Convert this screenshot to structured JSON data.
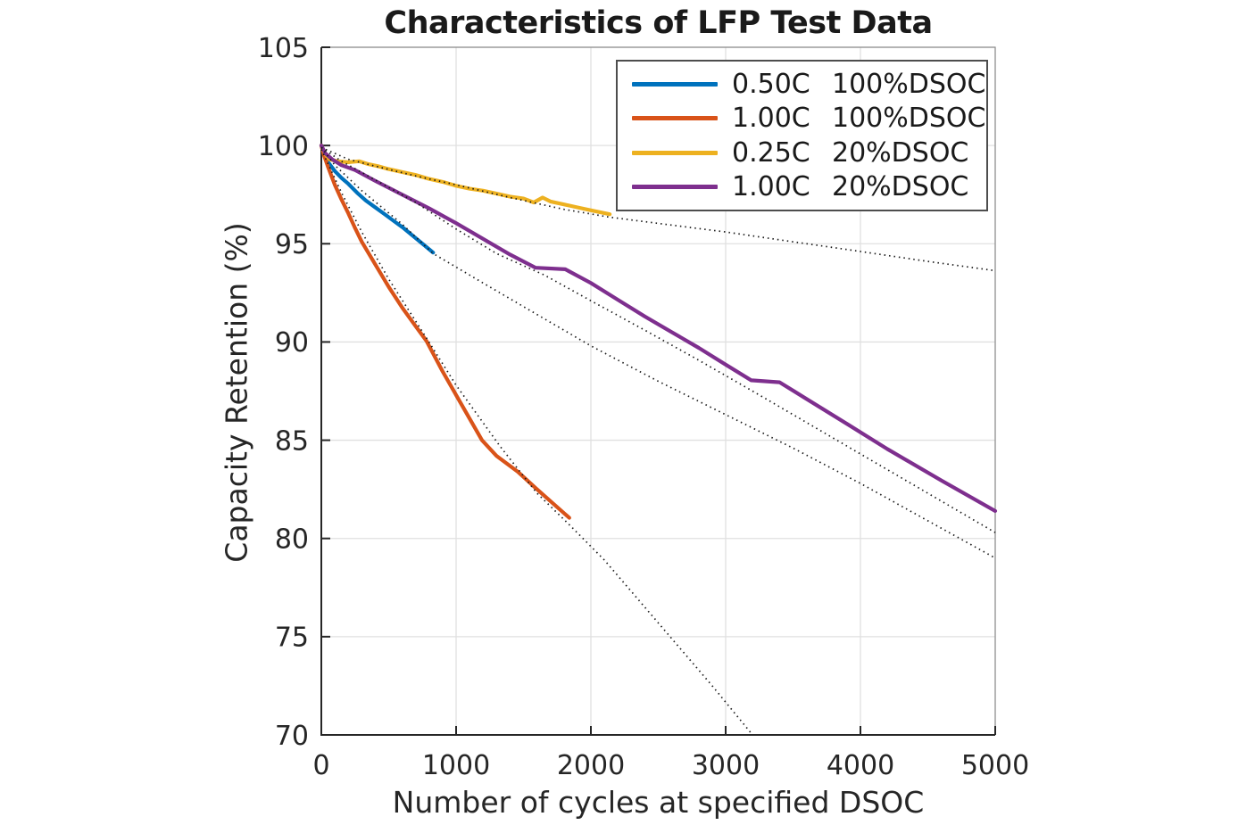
{
  "chart_data": {
    "type": "line",
    "title": "Characteristics of LFP Test Data",
    "xlabel": "Number of cycles at specified DSOC",
    "ylabel": "Capacity Retention (%)",
    "xlim": [
      0,
      5000
    ],
    "ylim": [
      70,
      105
    ],
    "xticks": [
      0,
      1000,
      2000,
      3000,
      4000,
      5000
    ],
    "yticks": [
      70,
      75,
      80,
      85,
      90,
      95,
      100,
      105
    ],
    "grid": true,
    "legend_position": "top-right",
    "axis_colors": {
      "main_axis": "#262626",
      "box_top_right": "#8c8c8c",
      "grid": "#e0e0e0"
    },
    "series": [
      {
        "name": "0.50C 100%DSOC",
        "color": "#0072BD",
        "style": "solid",
        "points": [
          [
            0,
            100
          ],
          [
            20,
            99.6
          ],
          [
            50,
            99.15
          ],
          [
            100,
            98.7
          ],
          [
            150,
            98.35
          ],
          [
            200,
            98.05
          ],
          [
            265,
            97.6
          ],
          [
            330,
            97.2
          ],
          [
            400,
            96.85
          ],
          [
            470,
            96.5
          ],
          [
            540,
            96.15
          ],
          [
            610,
            95.8
          ],
          [
            680,
            95.4
          ],
          [
            750,
            95.0
          ],
          [
            830,
            94.55
          ]
        ]
      },
      {
        "name": "1.00C 100%DSOC",
        "color": "#D95319",
        "style": "solid",
        "points": [
          [
            0,
            100
          ],
          [
            20,
            99.5
          ],
          [
            50,
            98.9
          ],
          [
            100,
            98.0
          ],
          [
            150,
            97.25
          ],
          [
            200,
            96.55
          ],
          [
            250,
            95.8
          ],
          [
            300,
            95.1
          ],
          [
            400,
            93.95
          ],
          [
            500,
            92.8
          ],
          [
            600,
            91.75
          ],
          [
            700,
            90.8
          ],
          [
            780,
            90.05
          ],
          [
            900,
            88.5
          ],
          [
            1000,
            87.3
          ],
          [
            1100,
            86.1
          ],
          [
            1192,
            85.0
          ],
          [
            1300,
            84.2
          ],
          [
            1457,
            83.4
          ],
          [
            1600,
            82.5
          ],
          [
            1700,
            81.9
          ],
          [
            1840,
            81.05
          ]
        ]
      },
      {
        "name": "0.25C 20%DSOC",
        "color": "#EDB120",
        "style": "solid",
        "points": [
          [
            0,
            100
          ],
          [
            30,
            99.55
          ],
          [
            60,
            99.3
          ],
          [
            120,
            99.2
          ],
          [
            200,
            99.15
          ],
          [
            280,
            99.2
          ],
          [
            350,
            99.05
          ],
          [
            420,
            98.95
          ],
          [
            500,
            98.8
          ],
          [
            600,
            98.65
          ],
          [
            700,
            98.5
          ],
          [
            800,
            98.3
          ],
          [
            900,
            98.15
          ],
          [
            1000,
            97.95
          ],
          [
            1100,
            97.8
          ],
          [
            1200,
            97.7
          ],
          [
            1300,
            97.55
          ],
          [
            1400,
            97.4
          ],
          [
            1500,
            97.3
          ],
          [
            1576,
            97.1
          ],
          [
            1642,
            97.35
          ],
          [
            1700,
            97.15
          ],
          [
            1800,
            97.0
          ],
          [
            1900,
            96.85
          ],
          [
            2000,
            96.7
          ],
          [
            2140,
            96.5
          ]
        ]
      },
      {
        "name": "1.00C 20%DSOC",
        "color": "#7E2F8E",
        "style": "solid",
        "points": [
          [
            0,
            100
          ],
          [
            30,
            99.6
          ],
          [
            80,
            99.3
          ],
          [
            150,
            99.0
          ],
          [
            250,
            98.75
          ],
          [
            400,
            98.2
          ],
          [
            600,
            97.5
          ],
          [
            800,
            96.8
          ],
          [
            1000,
            96.05
          ],
          [
            1200,
            95.25
          ],
          [
            1400,
            94.45
          ],
          [
            1590,
            93.78
          ],
          [
            1810,
            93.7
          ],
          [
            2000,
            93.0
          ],
          [
            2200,
            92.15
          ],
          [
            2400,
            91.3
          ],
          [
            2600,
            90.5
          ],
          [
            2800,
            89.7
          ],
          [
            3000,
            88.85
          ],
          [
            3190,
            88.05
          ],
          [
            3400,
            87.95
          ],
          [
            3600,
            87.1
          ],
          [
            3907,
            85.8
          ],
          [
            4200,
            84.55
          ],
          [
            4600,
            82.95
          ],
          [
            5000,
            81.4
          ]
        ]
      }
    ],
    "fit_lines": [
      {
        "for": "0.50C 100%DSOC",
        "color": "#1a1a1a",
        "style": "dotted",
        "points": [
          [
            0,
            99.9
          ],
          [
            100,
            99.0
          ],
          [
            300,
            97.7
          ],
          [
            600,
            96.0
          ],
          [
            830,
            94.5
          ],
          [
            1200,
            93.0
          ],
          [
            1600,
            91.4
          ],
          [
            2000,
            89.8
          ],
          [
            2500,
            88.0
          ],
          [
            3000,
            86.3
          ],
          [
            3500,
            84.6
          ],
          [
            4000,
            82.8
          ],
          [
            4500,
            80.9
          ],
          [
            5000,
            79.0
          ]
        ]
      },
      {
        "for": "1.00C 100%DSOC",
        "color": "#1a1a1a",
        "style": "dotted",
        "points": [
          [
            0,
            99.8
          ],
          [
            150,
            97.6
          ],
          [
            300,
            95.6
          ],
          [
            500,
            93.2
          ],
          [
            780,
            90.2
          ],
          [
            1000,
            87.8
          ],
          [
            1325,
            84.7
          ],
          [
            1600,
            82.3
          ],
          [
            1840,
            80.7
          ],
          [
            2100,
            78.9
          ],
          [
            2500,
            75.7
          ],
          [
            2900,
            72.5
          ],
          [
            3200,
            70.0
          ]
        ]
      },
      {
        "for": "0.25C 20%DSOC",
        "color": "#1a1a1a",
        "style": "dotted",
        "points": [
          [
            0,
            99.9
          ],
          [
            200,
            99.3
          ],
          [
            400,
            98.95
          ],
          [
            700,
            98.45
          ],
          [
            1000,
            98.0
          ],
          [
            1400,
            97.35
          ],
          [
            1800,
            96.75
          ],
          [
            2140,
            96.35
          ],
          [
            2600,
            95.95
          ],
          [
            3000,
            95.6
          ],
          [
            3500,
            95.1
          ],
          [
            3907,
            94.7
          ],
          [
            4500,
            94.1
          ],
          [
            5000,
            93.63
          ]
        ]
      },
      {
        "for": "1.00C 20%DSOC",
        "color": "#1a1a1a",
        "style": "dotted",
        "points": [
          [
            0,
            99.9
          ],
          [
            150,
            99.2
          ],
          [
            400,
            98.25
          ],
          [
            700,
            97.1
          ],
          [
            1000,
            95.75
          ],
          [
            1300,
            94.5
          ],
          [
            1656,
            93.4
          ],
          [
            2000,
            92.1
          ],
          [
            2400,
            90.6
          ],
          [
            2781,
            89.15
          ],
          [
            3200,
            87.5
          ],
          [
            3600,
            85.9
          ],
          [
            4000,
            84.3
          ],
          [
            4500,
            82.3
          ],
          [
            5000,
            80.3
          ]
        ]
      }
    ],
    "legend": [
      {
        "rate": "0.50C",
        "dsoc": "100%DSOC",
        "label": "0.50C  100%DSOC",
        "color": "#0072BD"
      },
      {
        "rate": "1.00C",
        "dsoc": "100%DSOC",
        "label": "1.00C  100%DSOC",
        "color": "#D95319"
      },
      {
        "rate": "0.25C",
        "dsoc": "20%DSOC",
        "label": "0.25C  20%DSOC",
        "color": "#EDB120"
      },
      {
        "rate": "1.00C",
        "dsoc": "20%DSOC",
        "label": "1.00C  20%DSOC",
        "color": "#7E2F8E"
      }
    ]
  }
}
